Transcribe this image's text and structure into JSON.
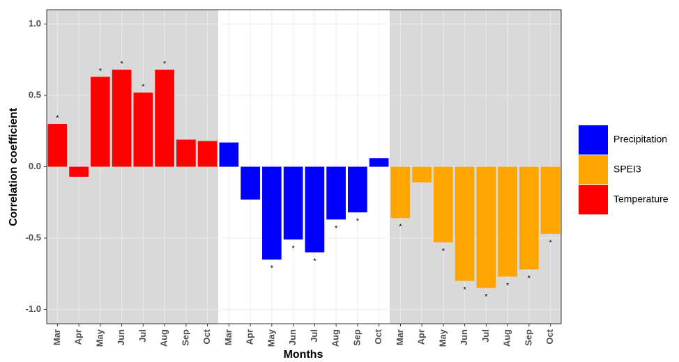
{
  "chart_data": {
    "type": "bar",
    "x_label": "Months",
    "y_label": "Correlation coefficient",
    "categories": [
      "Mar",
      "Apr",
      "May",
      "Jun",
      "Jul",
      "Aug",
      "Sep",
      "Oct",
      "Mar",
      "Apr",
      "May",
      "Jun",
      "Jul",
      "Aug",
      "Sep",
      "Oct",
      "Mar",
      "Apr",
      "May",
      "Jun",
      "Jul",
      "Aug",
      "Sep",
      "Oct"
    ],
    "series": [
      {
        "name": "Precipitation",
        "color": "#0000ff",
        "values": [
          null,
          null,
          null,
          null,
          null,
          null,
          null,
          null,
          0.17,
          -0.23,
          -0.65,
          -0.51,
          -0.6,
          -0.37,
          -0.32,
          0.06,
          null,
          null,
          null,
          null,
          null,
          null,
          null,
          null
        ],
        "markers": [
          null,
          null,
          null,
          null,
          null,
          null,
          null,
          null,
          null,
          null,
          "*",
          "*",
          "*",
          "*",
          "*",
          null,
          null,
          null,
          null,
          null,
          null,
          null,
          null,
          null
        ]
      },
      {
        "name": "SPEI3",
        "color": "#ffa500",
        "values": [
          null,
          null,
          null,
          null,
          null,
          null,
          null,
          null,
          null,
          null,
          null,
          null,
          null,
          null,
          null,
          null,
          -0.36,
          -0.11,
          -0.53,
          -0.8,
          -0.85,
          -0.77,
          -0.72,
          -0.47
        ],
        "markers": [
          null,
          null,
          null,
          null,
          null,
          null,
          null,
          null,
          null,
          null,
          null,
          null,
          null,
          null,
          null,
          null,
          "*",
          null,
          "*",
          "*",
          "*",
          "*",
          "*",
          "*"
        ]
      },
      {
        "name": "Temperature",
        "color": "#ff0000",
        "values": [
          0.3,
          -0.07,
          0.63,
          0.68,
          0.52,
          0.68,
          0.19,
          0.18,
          null,
          null,
          null,
          null,
          null,
          null,
          null,
          null,
          null,
          null,
          null,
          null,
          null,
          null,
          null,
          null
        ],
        "markers": [
          "*",
          null,
          "*",
          "*",
          "*",
          "*",
          null,
          null,
          null,
          null,
          null,
          null,
          null,
          null,
          null,
          null,
          null,
          null,
          null,
          null,
          null,
          null,
          null,
          null
        ]
      }
    ],
    "ylim": [
      -1.1,
      1.1
    ],
    "yticks": [
      {
        "value": -1,
        "label": "-1.0"
      },
      -0.5,
      {
        "value": 0,
        "label": "0.0"
      },
      0.5,
      {
        "value": 1,
        "label": "1.0"
      }
    ],
    "grid": true,
    "legend": "right"
  }
}
